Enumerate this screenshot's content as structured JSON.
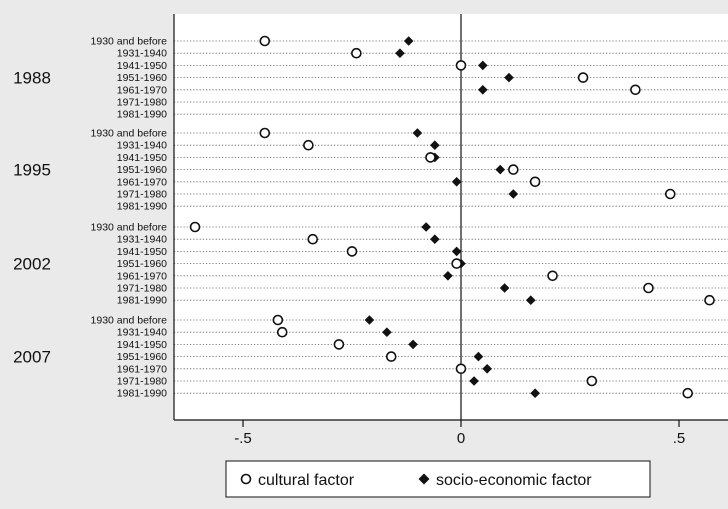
{
  "chart_data": {
    "type": "scatter",
    "orientation": "horizontal dot plot",
    "xlim": [
      -0.66,
      0.62
    ],
    "x_ticks": [
      {
        "value": -0.5,
        "label": "-.5"
      },
      {
        "value": 0,
        "label": "0"
      },
      {
        "value": 0.5,
        "label": ".5"
      }
    ],
    "grid": "dotted horizontal lines per category",
    "reference_line": 0,
    "legend_position": "bottom",
    "categories": [
      "1930 and before",
      "1931-1940",
      "1941-1950",
      "1951-1960",
      "1961-1970",
      "1971-1980",
      "1981-1990"
    ],
    "series": [
      {
        "name": "cultural factor",
        "marker": "hollow-circle"
      },
      {
        "name": "socio-economic factor",
        "marker": "filled-diamond"
      }
    ],
    "groups": [
      {
        "year": "1988",
        "cultural": [
          -0.45,
          -0.24,
          0.0,
          0.28,
          0.4,
          null,
          null
        ],
        "socio": [
          -0.12,
          -0.14,
          0.05,
          0.11,
          0.05,
          null,
          null
        ]
      },
      {
        "year": "1995",
        "cultural": [
          -0.45,
          -0.35,
          -0.07,
          0.12,
          0.17,
          0.48,
          null
        ],
        "socio": [
          -0.1,
          -0.06,
          -0.06,
          0.09,
          -0.01,
          0.12,
          null
        ]
      },
      {
        "year": "2002",
        "cultural": [
          -0.61,
          -0.34,
          -0.25,
          -0.01,
          0.21,
          0.43,
          0.57
        ],
        "socio": [
          -0.08,
          -0.06,
          -0.01,
          0.0,
          -0.03,
          0.1,
          0.16
        ]
      },
      {
        "year": "2007",
        "cultural": [
          -0.42,
          -0.41,
          -0.28,
          -0.16,
          0.0,
          0.3,
          0.52
        ],
        "socio": [
          -0.21,
          -0.17,
          -0.11,
          0.04,
          0.06,
          0.03,
          0.17
        ]
      }
    ]
  }
}
